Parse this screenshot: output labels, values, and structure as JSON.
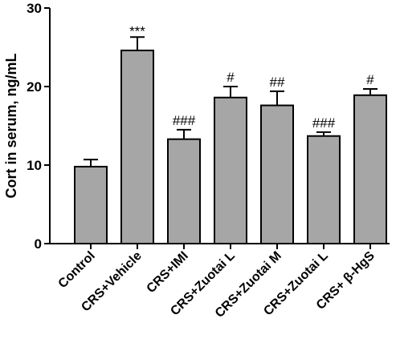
{
  "chart_data": {
    "type": "bar",
    "title": "",
    "xlabel": "",
    "ylabel": "Cort in serum, ng/mL",
    "ylim": [
      0,
      30
    ],
    "yticks": [
      0,
      10,
      20,
      30
    ],
    "grid": false,
    "bar_color": "#a6a6a6",
    "categories": [
      "Control",
      "CRS+Vehicle",
      "CRS+IMI",
      "CRS+Zuotai L",
      "CRS+Zuotai M",
      "CRS+Zuotai L",
      "CRS+ β-HgS"
    ],
    "values": [
      9.8,
      24.6,
      13.3,
      18.6,
      17.6,
      13.7,
      18.9
    ],
    "errors": [
      0.9,
      1.7,
      1.2,
      1.4,
      1.8,
      0.5,
      0.8
    ],
    "annotations": [
      "",
      "***",
      "###",
      "#",
      "##",
      "###",
      "#"
    ]
  }
}
